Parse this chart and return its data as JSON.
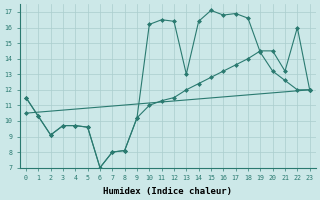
{
  "xlabel": "Humidex (Indice chaleur)",
  "bg_color": "#cce8e8",
  "line_color": "#2a7a70",
  "xlim": [
    -0.5,
    23.5
  ],
  "ylim": [
    7,
    17.5
  ],
  "xticks": [
    0,
    1,
    2,
    3,
    4,
    5,
    6,
    7,
    8,
    9,
    10,
    11,
    12,
    13,
    14,
    15,
    16,
    17,
    18,
    19,
    20,
    21,
    22,
    23
  ],
  "yticks": [
    7,
    8,
    9,
    10,
    11,
    12,
    13,
    14,
    15,
    16,
    17
  ],
  "line1_x": [
    0,
    1,
    2,
    3,
    4,
    5,
    6,
    7,
    8,
    9,
    10,
    11,
    12,
    13,
    14,
    15,
    16,
    17,
    18,
    19,
    20,
    21,
    22,
    23
  ],
  "line1_y": [
    11.5,
    10.3,
    9.1,
    9.7,
    9.7,
    9.6,
    7.0,
    8.0,
    8.1,
    10.2,
    16.2,
    16.5,
    16.4,
    13.0,
    16.4,
    17.1,
    16.8,
    16.9,
    16.6,
    14.4,
    13.2,
    12.6,
    12.0,
    12.0
  ],
  "line2_x": [
    0,
    1,
    2,
    3,
    4,
    5,
    6,
    7,
    8,
    9,
    10,
    11,
    12,
    13,
    14,
    15,
    16,
    17,
    18,
    19,
    20,
    21,
    22,
    23
  ],
  "line2_y": [
    11.5,
    10.3,
    9.1,
    9.7,
    9.7,
    9.6,
    7.0,
    8.0,
    8.1,
    10.2,
    11.0,
    11.3,
    11.5,
    12.0,
    12.4,
    12.8,
    13.2,
    13.6,
    14.0,
    14.5,
    14.5,
    13.2,
    16.0,
    12.0
  ],
  "line3_x": [
    0,
    23
  ],
  "line3_y": [
    10.5,
    12.0
  ]
}
